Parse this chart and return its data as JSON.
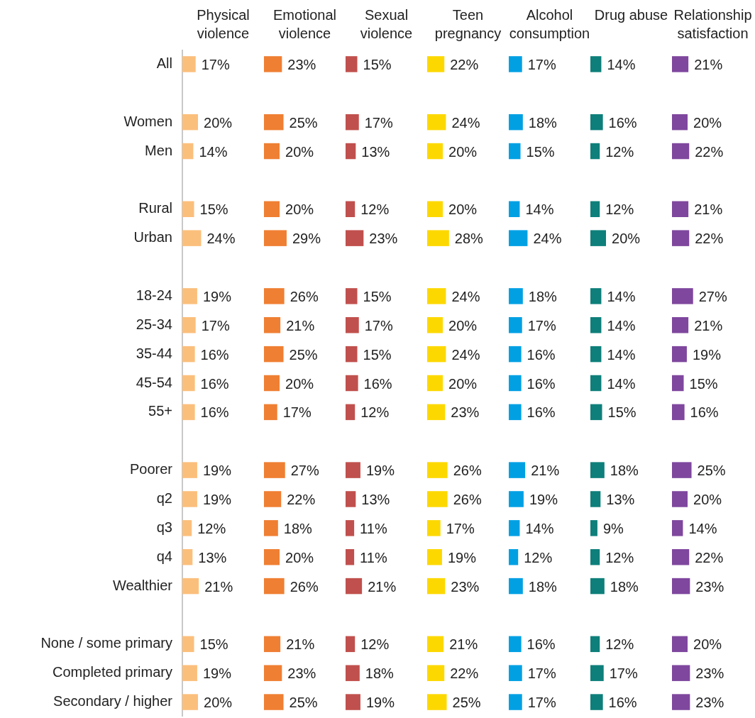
{
  "chart_data": [
    {
      "type": "bar",
      "orientation": "horizontal",
      "title": "Physical violence",
      "color": "#fbbf7c",
      "tick_labels": "y",
      "categories": [
        "All",
        null,
        "Women",
        "Men",
        null,
        "Rural",
        "Urban",
        null,
        "18-24",
        "25-34",
        "35-44",
        "45-54",
        "55+",
        null,
        "Poorer",
        "q2",
        "q3",
        "q4",
        "Wealthier",
        null,
        "None / some primary",
        "Completed primary",
        "Secondary / higher"
      ],
      "values": [
        17,
        null,
        20,
        14,
        null,
        15,
        24,
        null,
        19,
        17,
        16,
        16,
        16,
        null,
        19,
        19,
        12,
        13,
        21,
        null,
        15,
        19,
        20
      ],
      "value_labels": [
        "17%",
        null,
        "20%",
        "14%",
        null,
        "15%",
        "24%",
        null,
        "19%",
        "17%",
        "16%",
        "16%",
        "16%",
        null,
        "19%",
        "19%",
        "12%",
        "13%",
        "21%",
        null,
        "15%",
        "19%",
        "20%"
      ]
    },
    {
      "type": "bar",
      "orientation": "horizontal",
      "title": "Emotional violence",
      "color": "#ef7f33",
      "tick_labels": false,
      "categories": [
        null,
        null,
        null,
        null,
        null,
        null,
        null,
        null,
        null,
        null,
        null,
        null,
        null,
        null,
        null,
        null,
        null,
        null,
        null,
        null,
        null,
        null,
        null
      ],
      "values": [
        23,
        null,
        25,
        20,
        null,
        20,
        29,
        null,
        26,
        21,
        25,
        20,
        17,
        null,
        27,
        22,
        18,
        20,
        26,
        null,
        21,
        23,
        25
      ],
      "value_labels": [
        "23%",
        null,
        "25%",
        "20%",
        null,
        "20%",
        "29%",
        null,
        "26%",
        "21%",
        "25%",
        "20%",
        "17%",
        null,
        "27%",
        "22%",
        "18%",
        "20%",
        "26%",
        null,
        "21%",
        "23%",
        "25%"
      ]
    },
    {
      "type": "bar",
      "orientation": "horizontal",
      "title": "Sexual violence",
      "color": "#c0504d",
      "tick_labels": false,
      "categories": [
        null,
        null,
        null,
        null,
        null,
        null,
        null,
        null,
        null,
        null,
        null,
        null,
        null,
        null,
        null,
        null,
        null,
        null,
        null,
        null,
        null,
        null,
        null
      ],
      "values": [
        15,
        null,
        17,
        13,
        null,
        12,
        23,
        null,
        15,
        17,
        15,
        16,
        12,
        null,
        19,
        13,
        11,
        11,
        21,
        null,
        12,
        18,
        19
      ],
      "value_labels": [
        "15%",
        null,
        "17%",
        "13%",
        null,
        "12%",
        "23%",
        null,
        "15%",
        "17%",
        "15%",
        "16%",
        "12%",
        null,
        "19%",
        "13%",
        "11%",
        "11%",
        "21%",
        null,
        "12%",
        "18%",
        "19%"
      ]
    },
    {
      "type": "bar",
      "orientation": "horizontal",
      "title": "Teen pregnancy",
      "color": "#fdd800",
      "tick_labels": false,
      "categories": [
        null,
        null,
        null,
        null,
        null,
        null,
        null,
        null,
        null,
        null,
        null,
        null,
        null,
        null,
        null,
        null,
        null,
        null,
        null,
        null,
        null,
        null,
        null
      ],
      "values": [
        22,
        null,
        24,
        20,
        null,
        20,
        28,
        null,
        24,
        20,
        24,
        20,
        23,
        null,
        26,
        26,
        17,
        19,
        23,
        null,
        21,
        22,
        25
      ],
      "value_labels": [
        "22%",
        null,
        "24%",
        "20%",
        null,
        "20%",
        "28%",
        null,
        "24%",
        "20%",
        "24%",
        "20%",
        "23%",
        null,
        "26%",
        "26%",
        "17%",
        "19%",
        "23%",
        null,
        "21%",
        "22%",
        "25%"
      ]
    },
    {
      "type": "bar",
      "orientation": "horizontal",
      "title": "Alcohol consumption",
      "color": "#00a0e3",
      "tick_labels": false,
      "categories": [
        null,
        null,
        null,
        null,
        null,
        null,
        null,
        null,
        null,
        null,
        null,
        null,
        null,
        null,
        null,
        null,
        null,
        null,
        null,
        null,
        null,
        null,
        null
      ],
      "values": [
        17,
        null,
        18,
        15,
        null,
        14,
        24,
        null,
        18,
        17,
        16,
        16,
        16,
        null,
        21,
        19,
        14,
        12,
        18,
        null,
        16,
        17,
        17
      ],
      "value_labels": [
        "17%",
        null,
        "18%",
        "15%",
        null,
        "14%",
        "24%",
        null,
        "18%",
        "17%",
        "16%",
        "16%",
        "16%",
        null,
        "21%",
        "19%",
        "14%",
        "12%",
        "18%",
        null,
        "16%",
        "17%",
        "17%"
      ]
    },
    {
      "type": "bar",
      "orientation": "horizontal",
      "title": "Drug abuse",
      "color": "#0e7f7a",
      "tick_labels": false,
      "categories": [
        null,
        null,
        null,
        null,
        null,
        null,
        null,
        null,
        null,
        null,
        null,
        null,
        null,
        null,
        null,
        null,
        null,
        null,
        null,
        null,
        null,
        null,
        null
      ],
      "values": [
        14,
        null,
        16,
        12,
        null,
        12,
        20,
        null,
        14,
        14,
        14,
        14,
        15,
        null,
        18,
        13,
        9,
        12,
        18,
        null,
        12,
        17,
        16
      ],
      "value_labels": [
        "14%",
        null,
        "16%",
        "12%",
        null,
        "12%",
        "20%",
        null,
        "14%",
        "14%",
        "14%",
        "14%",
        "15%",
        null,
        "18%",
        "13%",
        "9%",
        "12%",
        "18%",
        null,
        "12%",
        "17%",
        "16%"
      ]
    },
    {
      "type": "bar",
      "orientation": "horizontal",
      "title": "Relationship satisfaction",
      "color": "#7f479e",
      "tick_labels": false,
      "categories": [
        null,
        null,
        null,
        null,
        null,
        null,
        null,
        null,
        null,
        null,
        null,
        null,
        null,
        null,
        null,
        null,
        null,
        null,
        null,
        null,
        null,
        null,
        null
      ],
      "values": [
        21,
        null,
        20,
        22,
        null,
        21,
        22,
        null,
        27,
        21,
        19,
        15,
        16,
        null,
        25,
        20,
        14,
        22,
        23,
        null,
        20,
        23,
        23
      ],
      "value_labels": [
        "21%",
        null,
        "20%",
        "22%",
        null,
        "21%",
        "22%",
        null,
        "27%",
        "21%",
        "19%",
        "15%",
        "16%",
        null,
        "25%",
        "20%",
        "14%",
        "22%",
        "23%",
        null,
        "20%",
        "23%",
        "23%"
      ]
    }
  ]
}
